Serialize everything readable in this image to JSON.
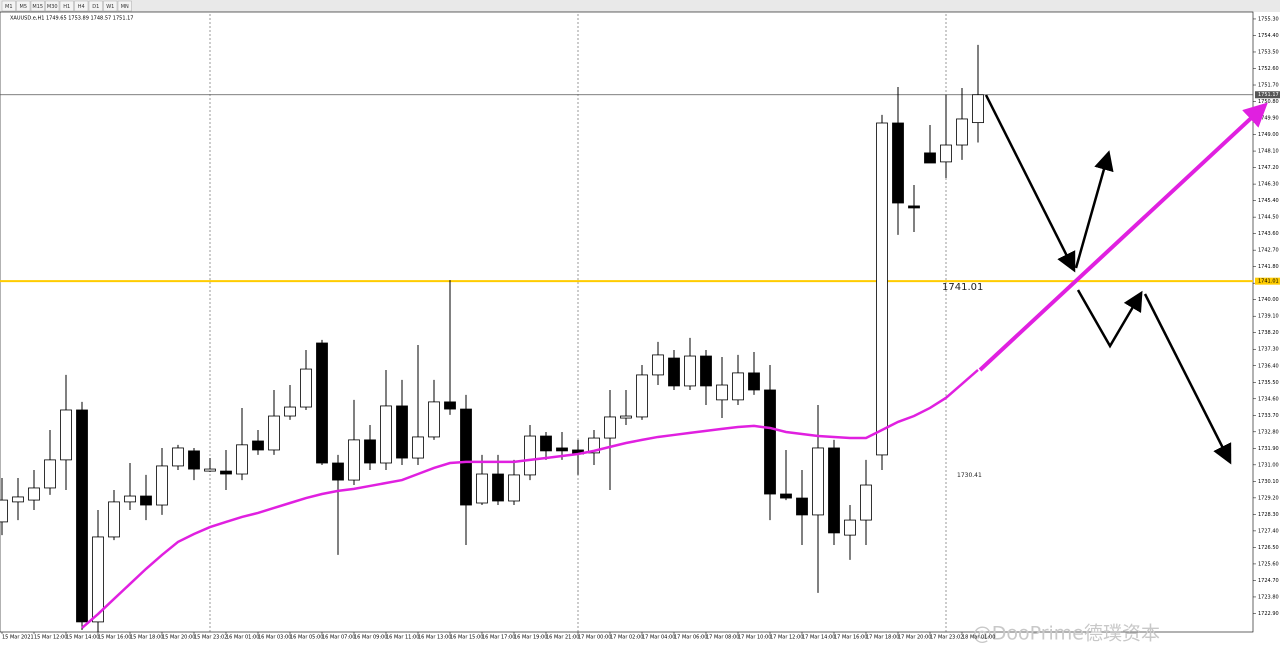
{
  "toolbar": [
    "M1",
    "M5",
    "M15",
    "M30",
    "H1",
    "H4",
    "D1",
    "W1",
    "MN"
  ],
  "watermark": "@DooPrime德璞资本",
  "chart_data": {
    "type": "candlestick",
    "title": "XAUUSD.e,H1  1749.65 1753.89 1748.57 1751.17",
    "categories": [
      "15 Mar 2021",
      null,
      "15 Mar 12:00",
      null,
      "15 Mar 14:00",
      null,
      "15 Mar 16:00",
      null,
      "15 Mar 18:00",
      null,
      "15 Mar 20:00",
      null,
      "15 Mar 23:02",
      null,
      "16 Mar 01:00",
      null,
      "16 Mar 03:00",
      null,
      "16 Mar 05:00",
      null,
      "16 Mar 07:00",
      null,
      "16 Mar 09:00",
      null,
      "16 Mar 11:00",
      null,
      "16 Mar 13:00",
      null,
      "16 Mar 15:00",
      null,
      "16 Mar 17:00",
      null,
      "16 Mar 19:00",
      null,
      "16 Mar 21:00",
      null,
      "17 Mar 00:00",
      null,
      "17 Mar 02:00",
      null,
      "17 Mar 04:00",
      null,
      "17 Mar 06:00",
      null,
      "17 Mar 08:00",
      null,
      "17 Mar 10:00",
      null,
      "17 Mar 12:00",
      null,
      "17 Mar 14:00",
      null,
      "17 Mar 16:00",
      null,
      "17 Mar 18:00",
      null,
      "17 Mar 20:00",
      null,
      "17 Mar 23:02",
      null,
      "18 Mar 01:00",
      null
    ],
    "open": [
      1727.89,
      1728.98,
      1729.08,
      1729.74,
      1731.27,
      1733.99,
      1722.44,
      1727.07,
      1728.98,
      1729.3,
      1728.81,
      1730.94,
      1731.76,
      1730.66,
      1730.66,
      1730.5,
      1732.3,
      1731.81,
      1733.66,
      1734.15,
      1737.64,
      1731.1,
      1730.17,
      1732.36,
      1731.1,
      1734.21,
      1731.37,
      1732.52,
      1734.43,
      1734.04,
      1728.92,
      1730.5,
      1729.03,
      1730.45,
      1732.57,
      1731.92,
      1731.81,
      1731.65,
      1732.46,
      1733.55,
      1733.61,
      1735.9,
      1736.82,
      1735.3,
      1736.93,
      1734.54,
      1734.54,
      1736.01,
      1735.08,
      1729.41,
      1729.19,
      1728.27,
      1731.92,
      1727.17,
      1727.99,
      1731.54,
      1749.63,
      1745.11,
      1748.0,
      1747.51,
      1748.43,
      1749.65
    ],
    "high": [
      1730.28,
      1730.28,
      1730.72,
      1732.9,
      1735.9,
      1734.43,
      1728.54,
      1729.63,
      1731.1,
      1730.45,
      1731.92,
      1732.09,
      1731.92,
      1731.37,
      1731.81,
      1734.1,
      1732.9,
      1735.08,
      1735.35,
      1737.26,
      1737.81,
      1731.54,
      1734.54,
      1733.17,
      1736.17,
      1735.63,
      1737.53,
      1735.63,
      1741.07,
      1734.81,
      1731.54,
      1731.54,
      1731.27,
      1733.17,
      1732.79,
      1732.79,
      1732.36,
      1732.9,
      1735.08,
      1735.08,
      1736.44,
      1737.7,
      1737.26,
      1737.92,
      1737.26,
      1736.88,
      1736.99,
      1737.15,
      1736.44,
      1731.81,
      1730.72,
      1734.26,
      1732.36,
      1728.81,
      1731.27,
      1750.07,
      1751.59,
      1746.25,
      1749.52,
      1751.16,
      1751.54,
      1753.89
    ],
    "low": [
      1727.17,
      1727.99,
      1728.54,
      1729.36,
      1729.63,
      1722.0,
      1721.89,
      1726.9,
      1728.54,
      1727.99,
      1728.27,
      1730.72,
      1730.17,
      1730.61,
      1729.63,
      1730.17,
      1731.54,
      1731.54,
      1733.45,
      1733.99,
      1730.99,
      1726.09,
      1729.9,
      1730.72,
      1730.72,
      1730.99,
      1730.99,
      1732.36,
      1733.72,
      1726.63,
      1728.81,
      1728.81,
      1728.81,
      1730.17,
      1731.27,
      1731.27,
      1730.45,
      1730.99,
      1729.63,
      1733.17,
      1733.45,
      1735.35,
      1735.08,
      1735.08,
      1734.26,
      1733.55,
      1734.26,
      1734.81,
      1727.99,
      1729.08,
      1726.63,
      1724.02,
      1726.63,
      1725.82,
      1726.63,
      1730.72,
      1743.53,
      1743.69,
      1747.45,
      1746.63,
      1747.62,
      1748.57
    ],
    "close": [
      1729.08,
      1729.25,
      1729.74,
      1731.27,
      1733.99,
      1722.44,
      1727.07,
      1728.98,
      1729.3,
      1728.81,
      1730.94,
      1731.92,
      1730.77,
      1730.77,
      1730.5,
      1732.09,
      1731.81,
      1733.66,
      1734.15,
      1736.22,
      1731.1,
      1730.17,
      1732.36,
      1731.1,
      1734.21,
      1731.37,
      1732.52,
      1734.43,
      1734.04,
      1728.81,
      1730.5,
      1729.03,
      1730.45,
      1732.57,
      1731.76,
      1731.76,
      1731.59,
      1732.46,
      1733.61,
      1733.66,
      1735.9,
      1736.99,
      1735.3,
      1736.93,
      1735.3,
      1735.35,
      1736.01,
      1735.08,
      1729.41,
      1729.19,
      1728.27,
      1731.92,
      1727.29,
      1727.99,
      1729.9,
      1749.63,
      1745.27,
      1745.0,
      1747.45,
      1748.43,
      1749.85,
      1751.17
    ],
    "up_color": "#ffffff",
    "down_color": "#000000",
    "moving_average": {
      "color": "#e020e0",
      "values": [
        null,
        null,
        null,
        null,
        null,
        1722.11,
        1722.87,
        1723.69,
        1724.51,
        1725.33,
        1726.09,
        1726.8,
        1727.23,
        1727.61,
        1727.89,
        1728.16,
        1728.38,
        1728.65,
        1728.92,
        1729.19,
        1729.41,
        1729.58,
        1729.69,
        1729.85,
        1730.01,
        1730.17,
        1730.5,
        1730.83,
        1731.1,
        1731.16,
        1731.16,
        1731.16,
        1731.16,
        1731.27,
        1731.37,
        1731.48,
        1731.59,
        1731.76,
        1731.98,
        1732.19,
        1732.36,
        1732.52,
        1732.63,
        1732.74,
        1732.85,
        1732.96,
        1733.06,
        1733.12,
        1733.01,
        1732.79,
        1732.68,
        1732.57,
        1732.52,
        1732.46,
        1732.46,
        1732.9,
        1733.34,
        1733.66,
        1734.1,
        1734.65,
        1735.41,
        1736.17
      ]
    },
    "ylim": [
      1721.89,
      1755.57
    ],
    "yticks": [
      {
        "value": 1755.3,
        "label": "1755.30"
      },
      {
        "value": 1754.4,
        "label": "1754.40"
      },
      {
        "value": 1753.5,
        "label": "1753.50"
      },
      {
        "value": 1752.6,
        "label": "1752.60"
      },
      {
        "value": 1751.7,
        "label": "1751.70"
      },
      {
        "value": 1750.8,
        "label": "1750.80"
      },
      {
        "value": 1749.9,
        "label": "1749.90"
      },
      {
        "value": 1749,
        "label": "1749.00"
      },
      {
        "value": 1748.1,
        "label": "1748.10"
      },
      {
        "value": 1747.2,
        "label": "1747.20"
      },
      {
        "value": 1746.3,
        "label": "1746.30"
      },
      {
        "value": 1745.4,
        "label": "1745.40"
      },
      {
        "value": 1744.5,
        "label": "1744.50"
      },
      {
        "value": 1743.6,
        "label": "1743.60"
      },
      {
        "value": 1742.7,
        "label": "1742.70"
      },
      {
        "value": 1741.8,
        "label": "1741.80"
      },
      {
        "value": 1740.9,
        "label": "1740.90"
      },
      {
        "value": 1740,
        "label": "1740.00"
      },
      {
        "value": 1739.1,
        "label": "1739.10"
      },
      {
        "value": 1738.2,
        "label": "1738.20"
      },
      {
        "value": 1737.3,
        "label": "1737.30"
      },
      {
        "value": 1736.4,
        "label": "1736.40"
      },
      {
        "value": 1735.5,
        "label": "1735.50"
      },
      {
        "value": 1734.6,
        "label": "1734.60"
      },
      {
        "value": 1733.7,
        "label": "1733.70"
      },
      {
        "value": 1732.8,
        "label": "1732.80"
      },
      {
        "value": 1731.9,
        "label": "1731.90"
      },
      {
        "value": 1731,
        "label": "1731.00"
      },
      {
        "value": 1730.1,
        "label": "1730.10"
      },
      {
        "value": 1729.2,
        "label": "1729.20"
      },
      {
        "value": 1728.3,
        "label": "1728.30"
      },
      {
        "value": 1727.4,
        "label": "1727.40"
      },
      {
        "value": 1726.5,
        "label": "1726.50"
      },
      {
        "value": 1725.6,
        "label": "1725.60"
      },
      {
        "value": 1724.7,
        "label": "1724.70"
      },
      {
        "value": 1723.8,
        "label": "1723.80"
      },
      {
        "value": 1722.9,
        "label": "1722.90"
      }
    ],
    "hlines": [
      {
        "value": 1741.01,
        "label": "1741.01",
        "color": "#ffcc00"
      },
      {
        "value": 1751.17,
        "label": "1751.17",
        "color": "#555555"
      }
    ],
    "annotations": [
      {
        "value": 1741.01,
        "text": "1741.01"
      },
      {
        "value": 1730.41,
        "text": "1730.41"
      }
    ]
  }
}
